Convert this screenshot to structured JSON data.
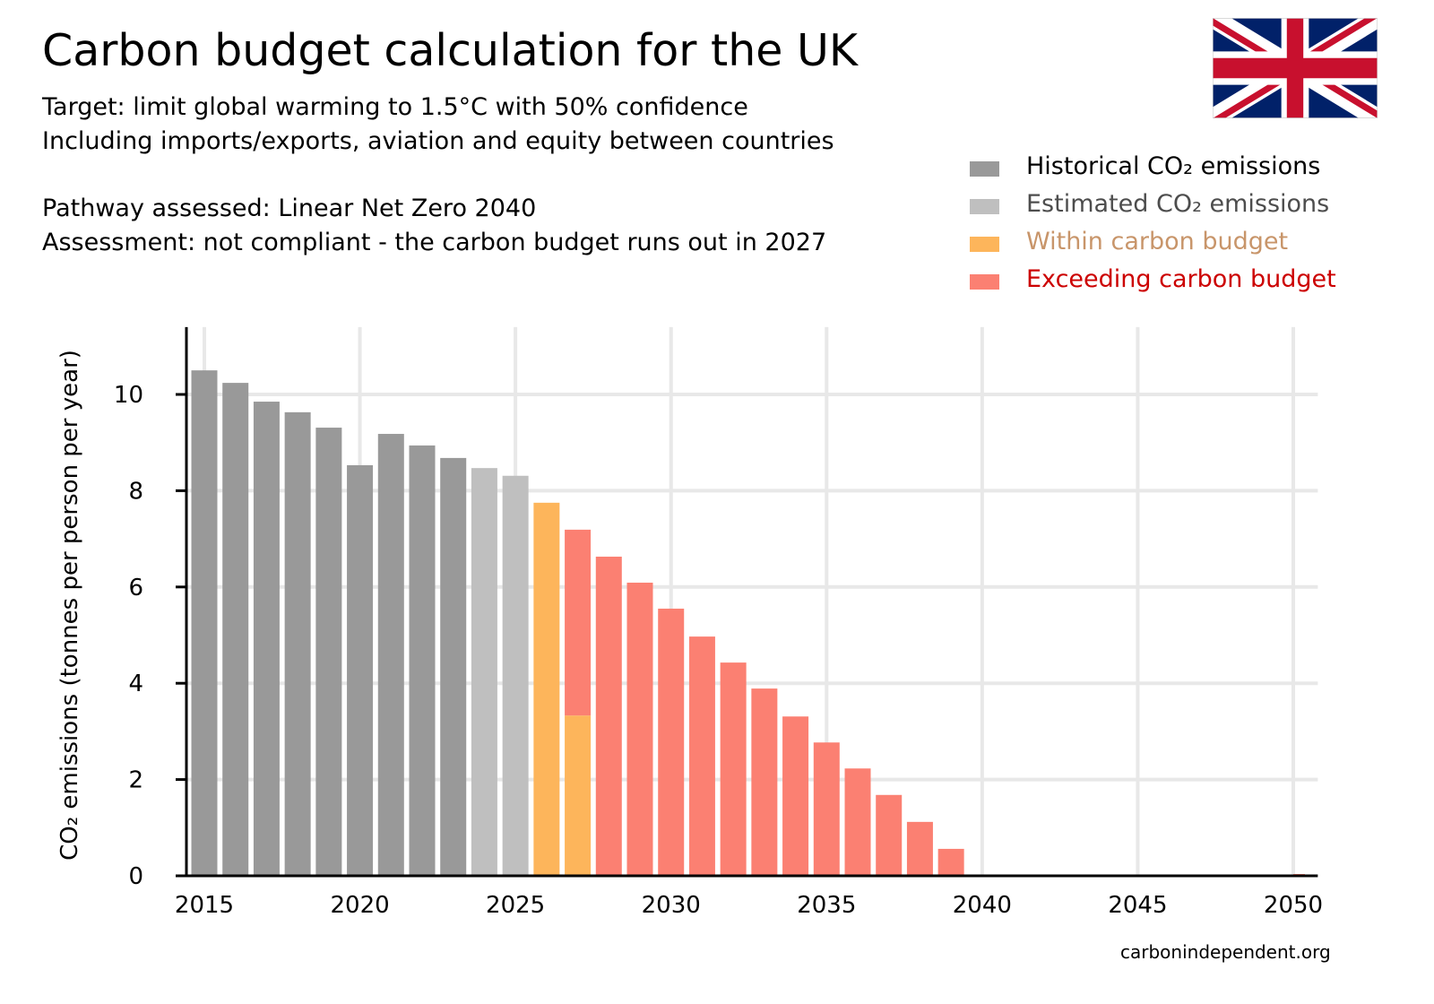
{
  "title": "Carbon budget calculation for the UK",
  "subtitle_lines": [
    "Target: limit global warming to 1.5°C with 50% confidence",
    "Including imports/exports, aviation and equity between countries",
    "Pathway assessed: Linear Net Zero 2040",
    "Assessment: not compliant - the carbon budget runs out in 2027"
  ],
  "flag": "united-kingdom-flag",
  "credit": "carbonindependent.org",
  "legend": [
    {
      "label": "Historical CO₂ emissions",
      "color": "#999999",
      "text_color": "#000000"
    },
    {
      "label": "Estimated CO₂ emissions",
      "color": "#bfbfbf",
      "text_color": "#4d4d4d"
    },
    {
      "label": "Within carbon budget",
      "color": "#fdb55b",
      "text_color": "#c8956a"
    },
    {
      "label": "Exceeding carbon budget",
      "color": "#fb8072",
      "text_color": "#cc0000"
    }
  ],
  "chart_data": {
    "type": "bar",
    "stacked": true,
    "title": "Carbon budget calculation for the UK",
    "ylabel": "CO₂ emissions (tonnes per person per year)",
    "xlabel": "",
    "xlim": [
      2014.5,
      2050.5
    ],
    "ylim": [
      0,
      11.4
    ],
    "xticks": [
      "2015",
      "2020",
      "2025",
      "2030",
      "2035",
      "2040",
      "2045",
      "2050"
    ],
    "yticks": [
      "0",
      "2",
      "4",
      "6",
      "8",
      "10"
    ],
    "grid": true,
    "legend_position": "top-right",
    "x": [
      2015,
      2016,
      2017,
      2018,
      2019,
      2020,
      2021,
      2022,
      2023,
      2024,
      2025,
      2026,
      2027,
      2028,
      2029,
      2030,
      2031,
      2032,
      2033,
      2034,
      2035,
      2036,
      2037,
      2038,
      2039,
      2040,
      2041,
      2042,
      2043,
      2044,
      2045,
      2046,
      2047,
      2048,
      2049,
      2050
    ],
    "series": [
      {
        "name": "Historical CO₂ emissions",
        "color": "#999999",
        "values": [
          10.5,
          10.24,
          9.85,
          9.63,
          9.31,
          8.53,
          9.18,
          8.94,
          8.68,
          0,
          0,
          0,
          0,
          0,
          0,
          0,
          0,
          0,
          0,
          0,
          0,
          0,
          0,
          0,
          0,
          0,
          0,
          0,
          0,
          0,
          0,
          0,
          0,
          0,
          0,
          0
        ]
      },
      {
        "name": "Estimated CO₂ emissions",
        "color": "#bfbfbf",
        "values": [
          0,
          0,
          0,
          0,
          0,
          0,
          0,
          0,
          0,
          8.47,
          8.31,
          0,
          0,
          0,
          0,
          0,
          0,
          0,
          0,
          0,
          0,
          0,
          0,
          0,
          0,
          0,
          0,
          0,
          0,
          0,
          0,
          0,
          0,
          0,
          0,
          0
        ]
      },
      {
        "name": "Within carbon budget",
        "color": "#fdb55b",
        "values": [
          0,
          0,
          0,
          0,
          0,
          0,
          0,
          0,
          0,
          0,
          0,
          7.75,
          3.33,
          0,
          0,
          0,
          0,
          0,
          0,
          0,
          0,
          0,
          0,
          0,
          0,
          0,
          0,
          0,
          0,
          0,
          0,
          0,
          0,
          0,
          0,
          0
        ]
      },
      {
        "name": "Exceeding carbon budget",
        "color": "#fb8072",
        "values": [
          0,
          0,
          0,
          0,
          0,
          0,
          0,
          0,
          0,
          0,
          0,
          0,
          3.86,
          6.63,
          6.09,
          5.55,
          4.97,
          4.43,
          3.89,
          3.31,
          2.77,
          2.23,
          1.68,
          1.12,
          0.56,
          0,
          0,
          0,
          0,
          0,
          0,
          0,
          0,
          0,
          0,
          0
        ]
      }
    ]
  }
}
